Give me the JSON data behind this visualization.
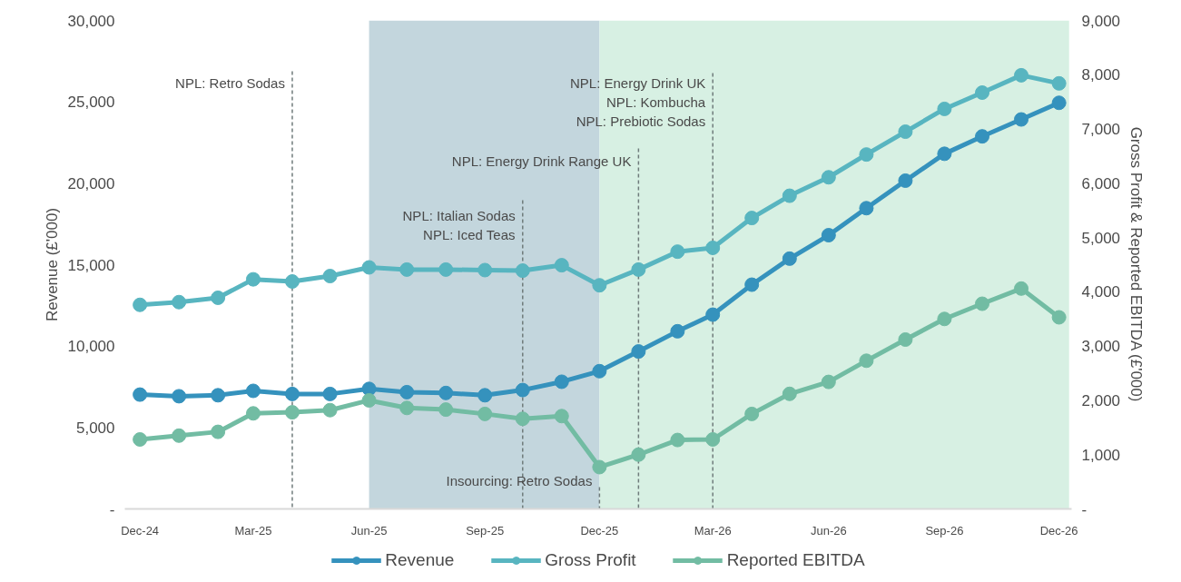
{
  "chart_data": {
    "type": "line",
    "ylabel": "Revenue (£'000)",
    "y2label": "Gross Profit & Reported EBITDA (£'000)",
    "x": [
      "2024-12",
      "2025-01",
      "2025-02",
      "2025-03",
      "2025-04",
      "2025-05",
      "2025-06",
      "2025-07",
      "2025-08",
      "2025-09",
      "2025-10",
      "2025-11",
      "2025-12",
      "2026-01",
      "2026-02",
      "2026-03",
      "2026-04",
      "2026-05",
      "2026-06",
      "2026-07",
      "2026-08",
      "2026-09",
      "2026-10",
      "2026-11",
      "2026-12"
    ],
    "xlim": [
      "2024-11-19",
      "2026-12-11"
    ],
    "xticks": [
      {
        "value": "2024-12",
        "label": "Dec-24"
      },
      {
        "value": "2025-03",
        "label": "Mar-25"
      },
      {
        "value": "2025-06",
        "label": "Jun-25"
      },
      {
        "value": "2025-09",
        "label": "Sep-25"
      },
      {
        "value": "2025-12",
        "label": "Dec-25"
      },
      {
        "value": "2026-03",
        "label": "Mar-26"
      },
      {
        "value": "2026-06",
        "label": "Jun-26"
      },
      {
        "value": "2026-09",
        "label": "Sep-26"
      },
      {
        "value": "2026-12",
        "label": "Dec-26"
      }
    ],
    "ylim": [
      0,
      30000
    ],
    "yticks": [
      {
        "value": 0,
        "label": "-"
      },
      {
        "value": 5000,
        "label": "5,000"
      },
      {
        "value": 10000,
        "label": "10,000"
      },
      {
        "value": 15000,
        "label": "15,000"
      },
      {
        "value": 20000,
        "label": "20,000"
      },
      {
        "value": 25000,
        "label": "25,000"
      },
      {
        "value": 30000,
        "label": "30,000"
      }
    ],
    "y2lim": [
      0,
      9000
    ],
    "y2ticks": [
      {
        "value": 0,
        "label": "-"
      },
      {
        "value": 1000,
        "label": "1,000"
      },
      {
        "value": 2000,
        "label": "2,000"
      },
      {
        "value": 3000,
        "label": "3,000"
      },
      {
        "value": 4000,
        "label": "4,000"
      },
      {
        "value": 5000,
        "label": "5,000"
      },
      {
        "value": 6000,
        "label": "6,000"
      },
      {
        "value": 7000,
        "label": "7,000"
      },
      {
        "value": 8000,
        "label": "8,000"
      },
      {
        "value": 9000,
        "label": "9,000"
      }
    ],
    "series": [
      {
        "name": "Revenue",
        "color": "#3592bd",
        "values": [
          7020,
          6920,
          6980,
          7250,
          7060,
          7060,
          7370,
          7170,
          7120,
          6980,
          7300,
          7810,
          8460,
          9670,
          10910,
          11930,
          13770,
          15370,
          16810,
          18470,
          20160,
          21810,
          22880,
          23920,
          24940
        ]
      },
      {
        "name": "Gross Profit",
        "color": "#58b5c0",
        "axis": "y2",
        "values": [
          3760,
          3810,
          3890,
          4230,
          4190,
          4290,
          4450,
          4410,
          4410,
          4400,
          4390,
          4490,
          4120,
          4410,
          4740,
          4810,
          5360,
          5770,
          6110,
          6530,
          6950,
          7370,
          7670,
          7990,
          7840
        ]
      },
      {
        "name": "Reported EBITDA",
        "color": "#72bca3",
        "axis": "y2",
        "values": [
          1280,
          1350,
          1420,
          1760,
          1780,
          1820,
          2000,
          1860,
          1830,
          1750,
          1660,
          1710,
          770,
          1000,
          1270,
          1280,
          1750,
          2120,
          2340,
          2730,
          3120,
          3500,
          3780,
          4060,
          3530
        ]
      }
    ],
    "bands": [
      {
        "axis": "x",
        "from": "2025-06",
        "to": "2025-12",
        "color": "#c3d6dd"
      },
      {
        "axis": "x",
        "from": "2025-12",
        "to": "2026-12-09",
        "color": "#d7f0e3"
      }
    ],
    "ref_lines": [
      {
        "axis": "x",
        "value": "2025-04",
        "label": "NPL: Retro Sodas",
        "color": "#6f7b7b",
        "line_style": "dashed"
      },
      {
        "axis": "x",
        "value": "2025-10",
        "label": "NPL: Italian Sodas\nNPL: Iced Teas",
        "color": "#6f7b7b",
        "line_style": "dashed"
      },
      {
        "axis": "x",
        "value": "2026-01",
        "label": "NPL: Energy Drink Range UK",
        "color": "#6f7b7b",
        "line_style": "dashed"
      },
      {
        "axis": "x",
        "value": "2026-03",
        "label": "NPL: Energy Drink UK\nNPL: Kombucha\nNPL: Prebiotic Sodas",
        "color": "#6f7b7b",
        "line_style": "dashed"
      },
      {
        "axis": "x",
        "value": "2025-12",
        "label": "Insourcing: Retro Sodas",
        "color": "#6f7b7b",
        "line_style": "dashed"
      }
    ],
    "marker": "circle",
    "line_style": "solid",
    "grid": false,
    "legend": "bottom"
  }
}
